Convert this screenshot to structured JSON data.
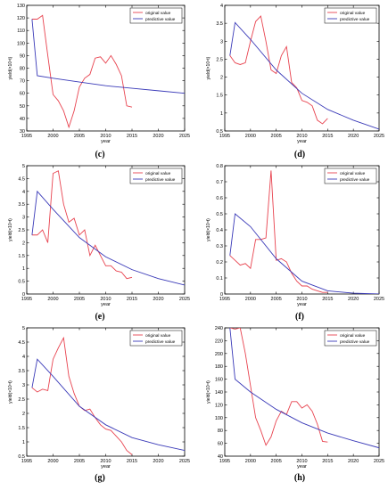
{
  "figure": {
    "panel_labels": [
      "(c)",
      "(d)",
      "(e)",
      "(f)",
      "(g)",
      "(h)"
    ]
  },
  "colors": {
    "original": "#e8434f",
    "predictive": "#3a3ab8",
    "axis": "#000000",
    "label": "#000000"
  },
  "chart_data": [
    {
      "panel": "(c)",
      "type": "line",
      "xlabel": "year",
      "ylabel": "yield(×10⁴t)",
      "xlim": [
        1995,
        2025
      ],
      "ylim": [
        30,
        130
      ],
      "xticks": [
        1995,
        2000,
        2005,
        2010,
        2015,
        2020,
        2025
      ],
      "yticks": [
        30,
        40,
        50,
        60,
        70,
        80,
        90,
        100,
        110,
        120,
        130
      ],
      "ytick_labels": [
        "30",
        "40",
        "50",
        "60",
        "70",
        "80",
        "90",
        "100",
        "110",
        "120",
        "130"
      ],
      "legend": {
        "placement": "top-right",
        "entries": [
          "original value",
          "predictive value"
        ]
      },
      "series": [
        {
          "name": "original value",
          "color_key": "original",
          "x": [
            1996,
            1997,
            1998,
            1999,
            2000,
            2001,
            2002,
            2003,
            2004,
            2005,
            2006,
            2007,
            2008,
            2009,
            2010,
            2011,
            2012,
            2013,
            2014,
            2015
          ],
          "y": [
            119,
            119,
            122,
            90,
            59,
            54,
            46,
            33,
            46,
            65,
            72,
            75,
            88,
            89,
            84,
            90,
            83,
            74,
            50,
            49
          ]
        },
        {
          "name": "predictive value",
          "color_key": "predictive",
          "x": [
            1996,
            1997,
            2000,
            2005,
            2010,
            2015,
            2020,
            2025
          ],
          "y": [
            119,
            74,
            72,
            69,
            66,
            64,
            62,
            60
          ]
        }
      ]
    },
    {
      "panel": "(d)",
      "type": "line",
      "xlabel": "year",
      "ylabel": "yield(×10⁴t)",
      "xlim": [
        1995,
        2025
      ],
      "ylim": [
        0.5,
        4
      ],
      "xticks": [
        1995,
        2000,
        2005,
        2010,
        2015,
        2020,
        2025
      ],
      "yticks": [
        0.5,
        1,
        1.5,
        2,
        2.5,
        3,
        3.5,
        4
      ],
      "ytick_labels": [
        "0.5",
        "1",
        "1.5",
        "2",
        "2.5",
        "3",
        "3.5",
        "4"
      ],
      "legend": {
        "placement": "top-right",
        "entries": [
          "original value",
          "predictive value"
        ]
      },
      "series": [
        {
          "name": "original value",
          "color_key": "original",
          "x": [
            1996,
            1997,
            1998,
            1999,
            2000,
            2001,
            2002,
            2003,
            2004,
            2005,
            2006,
            2007,
            2008,
            2009,
            2010,
            2011,
            2012,
            2013,
            2014,
            2015
          ],
          "y": [
            2.6,
            2.4,
            2.35,
            2.4,
            3.0,
            3.55,
            3.7,
            3.0,
            2.2,
            2.1,
            2.6,
            2.85,
            1.85,
            1.7,
            1.35,
            1.3,
            1.2,
            0.8,
            0.7,
            0.85
          ]
        },
        {
          "name": "predictive value",
          "color_key": "predictive",
          "x": [
            1996,
            1997,
            2000,
            2005,
            2010,
            2015,
            2020,
            2025
          ],
          "y": [
            2.6,
            3.52,
            3.05,
            2.2,
            1.55,
            1.1,
            0.8,
            0.55
          ]
        }
      ]
    },
    {
      "panel": "(e)",
      "type": "line",
      "xlabel": "year",
      "ylabel": "yield(×10⁴t)",
      "xlim": [
        1995,
        2025
      ],
      "ylim": [
        0,
        5
      ],
      "xticks": [
        1995,
        2000,
        2005,
        2010,
        2015,
        2020,
        2025
      ],
      "yticks": [
        0,
        0.5,
        1,
        1.5,
        2,
        2.5,
        3,
        3.5,
        4,
        4.5,
        5
      ],
      "ytick_labels": [
        "0",
        "0.5",
        "1",
        "1.5",
        "2",
        "2.5",
        "3",
        "3.5",
        "4",
        "4.5",
        "5"
      ],
      "legend": {
        "placement": "top-right",
        "entries": [
          "original value",
          "predictive value"
        ]
      },
      "series": [
        {
          "name": "original value",
          "color_key": "original",
          "x": [
            1996,
            1997,
            1998,
            1999,
            2000,
            2001,
            2002,
            2003,
            2004,
            2005,
            2006,
            2007,
            2008,
            2009,
            2010,
            2011,
            2012,
            2013,
            2014,
            2015
          ],
          "y": [
            2.3,
            2.3,
            2.5,
            2.0,
            4.7,
            4.8,
            3.5,
            2.8,
            2.95,
            2.3,
            2.5,
            1.5,
            1.9,
            1.5,
            1.1,
            1.1,
            0.9,
            0.85,
            0.6,
            0.65
          ]
        },
        {
          "name": "predictive value",
          "color_key": "predictive",
          "x": [
            1996,
            1997,
            2000,
            2005,
            2010,
            2015,
            2020,
            2025
          ],
          "y": [
            2.3,
            4.0,
            3.3,
            2.2,
            1.45,
            0.95,
            0.6,
            0.35
          ]
        }
      ]
    },
    {
      "panel": "(f)",
      "type": "line",
      "xlabel": "year",
      "ylabel": "yield(×10⁴t)",
      "xlim": [
        1995,
        2025
      ],
      "ylim": [
        0,
        0.8
      ],
      "xticks": [
        1995,
        2000,
        2005,
        2010,
        2015,
        2020,
        2025
      ],
      "yticks": [
        0,
        0.1,
        0.2,
        0.3,
        0.4,
        0.5,
        0.6,
        0.7,
        0.8
      ],
      "ytick_labels": [
        "0",
        "0.1",
        "0.2",
        "0.3",
        "0.4",
        "0.5",
        "0.6",
        "0.7",
        "0.8"
      ],
      "legend": {
        "placement": "top-right",
        "entries": [
          "original value",
          "predictive value"
        ]
      },
      "series": [
        {
          "name": "original value",
          "color_key": "original",
          "x": [
            1996,
            1997,
            1998,
            1999,
            2000,
            2001,
            2002,
            2003,
            2004,
            2005,
            2006,
            2007,
            2008,
            2009,
            2010,
            2011,
            2012,
            2013,
            2014,
            2015
          ],
          "y": [
            0.24,
            0.21,
            0.18,
            0.19,
            0.16,
            0.34,
            0.34,
            0.35,
            0.77,
            0.21,
            0.22,
            0.2,
            0.13,
            0.08,
            0.05,
            0.05,
            0.03,
            0.02,
            0.01,
            0.01
          ]
        },
        {
          "name": "predictive value",
          "color_key": "predictive",
          "x": [
            1996,
            1997,
            2000,
            2005,
            2010,
            2015,
            2020,
            2025
          ],
          "y": [
            0.24,
            0.5,
            0.42,
            0.22,
            0.08,
            0.02,
            0.005,
            0.0
          ]
        }
      ]
    },
    {
      "panel": "(g)",
      "type": "line",
      "xlabel": "year",
      "ylabel": "yield(×10⁴t)",
      "xlim": [
        1995,
        2025
      ],
      "ylim": [
        0.5,
        5
      ],
      "xticks": [
        1995,
        2000,
        2005,
        2010,
        2015,
        2020,
        2025
      ],
      "yticks": [
        0.5,
        1,
        1.5,
        2,
        2.5,
        3,
        3.5,
        4,
        4.5,
        5
      ],
      "ytick_labels": [
        "0.5",
        "1",
        "1.5",
        "2",
        "2.5",
        "3",
        "3.5",
        "4",
        "4.5",
        "5"
      ],
      "legend": {
        "placement": "top-right",
        "entries": [
          "original value",
          "predictive value"
        ]
      },
      "series": [
        {
          "name": "original value",
          "color_key": "original",
          "x": [
            1996,
            1997,
            1998,
            1999,
            2000,
            2001,
            2002,
            2003,
            2004,
            2005,
            2006,
            2007,
            2008,
            2009,
            2010,
            2011,
            2012,
            2013,
            2014,
            2015
          ],
          "y": [
            2.9,
            2.75,
            2.85,
            2.8,
            3.9,
            4.3,
            4.65,
            3.3,
            2.7,
            2.25,
            2.1,
            2.15,
            1.85,
            1.6,
            1.45,
            1.4,
            1.2,
            1.0,
            0.7,
            0.55
          ]
        },
        {
          "name": "predictive value",
          "color_key": "predictive",
          "x": [
            1996,
            1997,
            2000,
            2005,
            2010,
            2015,
            2020,
            2025
          ],
          "y": [
            2.9,
            3.9,
            3.3,
            2.25,
            1.6,
            1.15,
            0.9,
            0.7
          ]
        }
      ]
    },
    {
      "panel": "(h)",
      "type": "line",
      "xlabel": "year",
      "ylabel": "yield(×10⁴t)",
      "xlim": [
        1995,
        2025
      ],
      "ylim": [
        40,
        240
      ],
      "xticks": [
        1995,
        2000,
        2005,
        2010,
        2015,
        2020,
        2025
      ],
      "yticks": [
        40,
        60,
        80,
        100,
        120,
        140,
        160,
        180,
        200,
        220,
        240
      ],
      "ytick_labels": [
        "40",
        "60",
        "80",
        "100",
        "120",
        "140",
        "160",
        "180",
        "200",
        "220",
        "240"
      ],
      "legend": {
        "placement": "top-right",
        "entries": [
          "original value",
          "predictive value"
        ]
      },
      "series": [
        {
          "name": "original value",
          "color_key": "original",
          "x": [
            1996,
            1997,
            1998,
            1999,
            2000,
            2001,
            2002,
            2003,
            2004,
            2005,
            2006,
            2007,
            2008,
            2009,
            2010,
            2011,
            2012,
            2013,
            2014,
            2015
          ],
          "y": [
            240,
            238,
            240,
            200,
            150,
            100,
            80,
            57,
            70,
            95,
            110,
            105,
            125,
            125,
            115,
            120,
            110,
            90,
            63,
            62
          ]
        },
        {
          "name": "predictive value",
          "color_key": "predictive",
          "x": [
            1996,
            1997,
            2000,
            2005,
            2010,
            2015,
            2020,
            2025
          ],
          "y": [
            240,
            160,
            140,
            113,
            92,
            76,
            64,
            53
          ]
        }
      ]
    }
  ]
}
